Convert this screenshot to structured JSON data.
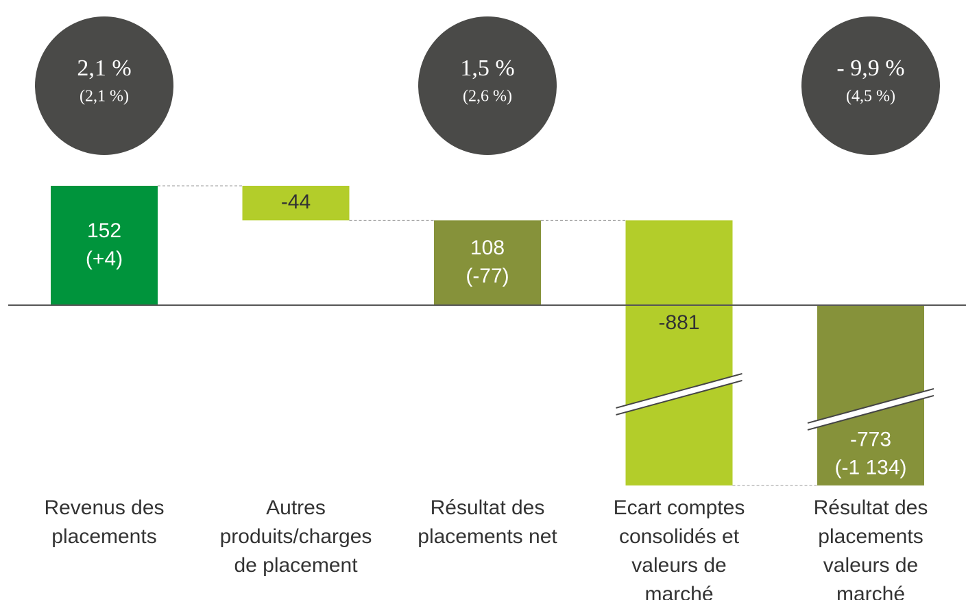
{
  "chart_data": {
    "type": "waterfall",
    "categories": [
      [
        "Revenus des",
        "placements"
      ],
      [
        "Autres",
        "produits/charges",
        "de placement"
      ],
      [
        "Résultat des",
        "placements net"
      ],
      [
        "Ecart comptes",
        "consolidés et",
        "valeurs de",
        "marché"
      ],
      [
        "Résultat des",
        "placements",
        "valeurs de",
        "marché"
      ]
    ],
    "values": [
      152,
      -44,
      108,
      -881,
      -773
    ],
    "measures": [
      "absolute",
      "relative",
      "absolute",
      "relative",
      "absolute"
    ],
    "changes": [
      "(+4)",
      null,
      "(-77)",
      null,
      "(-1 134)"
    ],
    "colors": [
      "#00943c",
      "#b3cd2a",
      "#86923a",
      "#b3cd2a",
      "#86923a"
    ],
    "annotations": [
      {
        "text": "2,1 %",
        "sub": "(2,1 %)"
      },
      null,
      {
        "text": "1,5 %",
        "sub": "(2,6 %)"
      },
      null,
      {
        "text": "- 9,9 %",
        "sub": "(4,5 %)"
      }
    ]
  }
}
